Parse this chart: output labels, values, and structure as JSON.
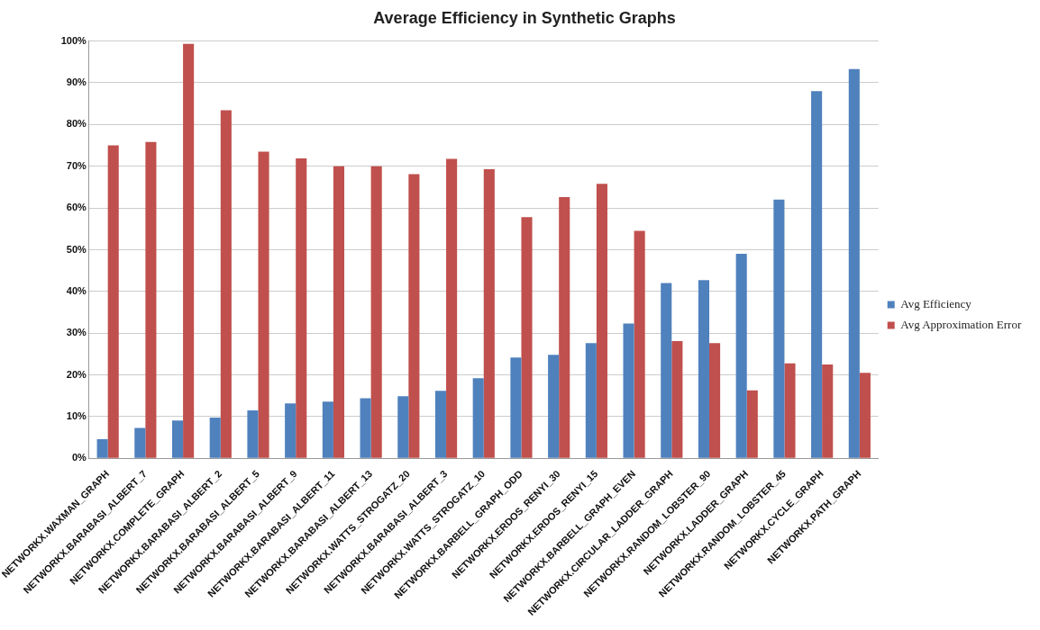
{
  "chart_data": {
    "type": "bar",
    "title": "Average Efficiency in Synthetic Graphs",
    "categories": [
      "NETWORKX.WAXMAN_GRAPH",
      "NETWORKX.BARABASI_ALBERT_7",
      "NETWORKX.COMPLETE_GRAPH",
      "NETWORKX.BARABASI_ALBERT_2",
      "NETWORKX.BARABASI_ALBERT_5",
      "NETWORKX.BARABASI_ALBERT_9",
      "NETWORKX.BARABASI_ALBERT_11",
      "NETWORKX.BARABASI_ALBERT_13",
      "NETWORKX.WATTS_STROGATZ_20",
      "NETWORKX.BARABASI_ALBERT_3",
      "NETWORKX.WATTS_STROGATZ_10",
      "NETWORKX.BARBELL_GRAPH_ODD",
      "NETWORKX.ERDOS_RENYI_30",
      "NETWORKX.ERDOS_RENYI_15",
      "NETWORKX.BARBELL_GRAPH_EVEN",
      "NETWORKX.CIRCULAR_LADDER_GRAPH",
      "NETWORKX.RANDOM_LOBSTER_90",
      "NETWORKX.LADDER_GRAPH",
      "NETWORKX.RANDOM_LOBSTER_45",
      "NETWORKX.CYCLE_GRAPH",
      "NETWORKX.PATH_GRAPH"
    ],
    "series": [
      {
        "name": "Avg Efficiency",
        "color": "#4f81bd",
        "values": [
          4.6,
          7.3,
          9.1,
          9.8,
          11.5,
          13.2,
          13.6,
          14.4,
          14.9,
          16.2,
          19.2,
          24.2,
          24.8,
          27.6,
          32.3,
          42,
          42.7,
          49,
          62,
          88,
          93.3
        ]
      },
      {
        "name": "Avg Approximation Error",
        "color": "#c0504d",
        "values": [
          75,
          75.8,
          99.3,
          83.4,
          73.5,
          71.9,
          70,
          70,
          68.1,
          71.8,
          69.3,
          57.8,
          62.6,
          65.8,
          54.5,
          28.1,
          27.6,
          16.3,
          22.8,
          22.5,
          20.5
        ]
      }
    ],
    "ylim": [
      0,
      100
    ],
    "yticks": [
      {
        "value": 0,
        "label": "0%"
      },
      {
        "value": 10,
        "label": "10%"
      },
      {
        "value": 20,
        "label": "20%"
      },
      {
        "value": 30,
        "label": "30%"
      },
      {
        "value": 40,
        "label": "40%"
      },
      {
        "value": 50,
        "label": "50%"
      },
      {
        "value": 60,
        "label": "60%"
      },
      {
        "value": 70,
        "label": "70%"
      },
      {
        "value": 80,
        "label": "80%"
      },
      {
        "value": 90,
        "label": "90%"
      },
      {
        "value": 100,
        "label": "100%"
      }
    ],
    "grid": "y",
    "legend": "right"
  }
}
